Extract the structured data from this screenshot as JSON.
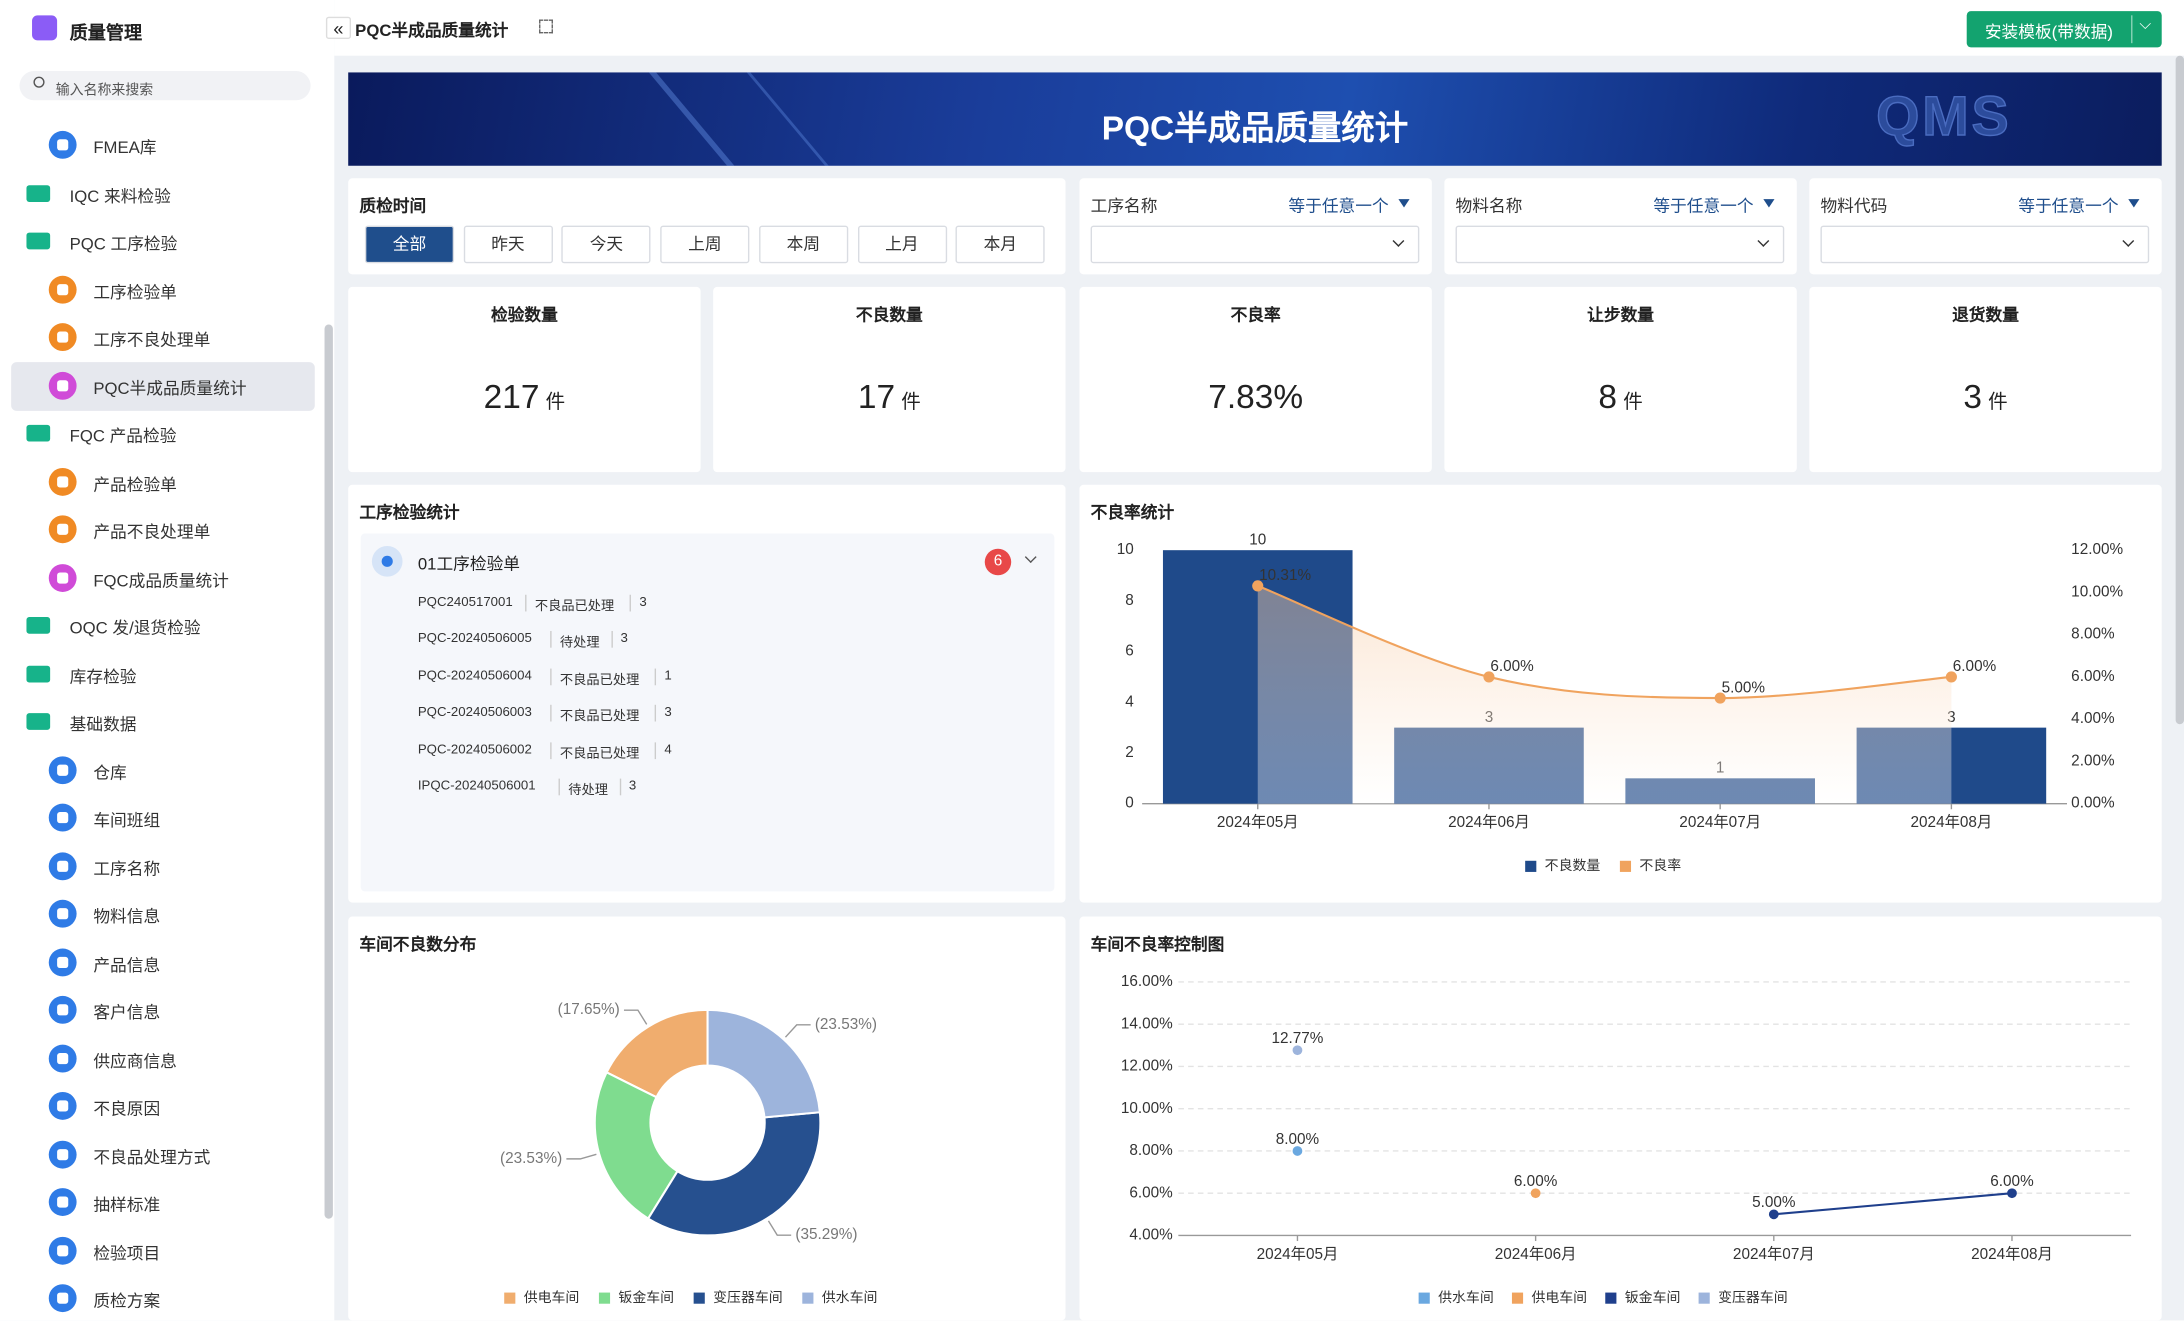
{
  "sidebar": {
    "app_title": "质量管理",
    "search_placeholder": "输入名称来搜索",
    "nav": [
      {
        "items": [
          "FMEA库"
        ]
      },
      {
        "label": "IQC 来料检验"
      },
      {
        "label": "PQC 工序检验",
        "items": [
          "工序检验单",
          "工序不良处理单",
          "PQC半成品质量统计"
        ]
      },
      {
        "label": "FQC 产品检验",
        "items": [
          "产品检验单",
          "产品不良处理单",
          "FQC成品质量统计"
        ]
      },
      {
        "label": "OQC 发/退货检验"
      },
      {
        "label": "库存检验"
      },
      {
        "label": "基础数据",
        "items": [
          "仓库",
          "车间班组",
          "工序名称",
          "物料信息",
          "产品信息",
          "客户信息",
          "供应商信息",
          "不良原因",
          "不良品处理方式",
          "抽样标准",
          "检验项目",
          "质检方案"
        ]
      }
    ]
  },
  "header": {
    "tab_title": "PQC半成品质量统计",
    "install_button": "安装模板(带数据)"
  },
  "banner": {
    "title": "PQC半成品质量统计",
    "logo": "QMS"
  },
  "filters": {
    "time": {
      "label": "质检时间",
      "options": [
        "全部",
        "昨天",
        "今天",
        "上周",
        "本周",
        "上月",
        "本月"
      ]
    },
    "fields": [
      {
        "label": "工序名称",
        "operator": "等于任意一个"
      },
      {
        "label": "物料名称",
        "operator": "等于任意一个"
      },
      {
        "label": "物料代码",
        "operator": "等于任意一个"
      }
    ]
  },
  "kpis": [
    {
      "label": "检验数量",
      "value": 217,
      "unit": "件"
    },
    {
      "label": "不良数量",
      "value": 17,
      "unit": "件"
    },
    {
      "label": "不良率",
      "value": "7.83%"
    },
    {
      "label": "让步数量",
      "value": 8,
      "unit": "件"
    },
    {
      "label": "退货数量",
      "value": 3,
      "unit": "件"
    }
  ],
  "process_stats": {
    "title": "工序检验统计",
    "group": "01工序检验单",
    "badge": 6,
    "rows": [
      [
        "PQC240517001",
        "不良品已处理",
        3
      ],
      [
        "PQC-20240506005",
        "待处理",
        3
      ],
      [
        "PQC-20240506004",
        "不良品已处理",
        1
      ],
      [
        "PQC-20240506003",
        "不良品已处理",
        3
      ],
      [
        "PQC-20240506002",
        "不良品已处理",
        4
      ],
      [
        "IPQC-20240506001",
        "待处理",
        3
      ]
    ]
  },
  "chart_data": [
    {
      "type": "bar",
      "title": "不良率统计",
      "categories": [
        "2024年05月",
        "2024年06月",
        "2024年07月",
        "2024年08月"
      ],
      "series": [
        {
          "name": "不良数量",
          "type": "bar",
          "color": "#1f4a8a",
          "values": [
            10,
            3,
            1,
            3
          ]
        },
        {
          "name": "不良率",
          "type": "line",
          "axis": "y2",
          "color": "#f0a35e",
          "values": [
            10.31,
            6,
            5,
            6
          ],
          "value_labels": [
            "10.31%",
            "6.00%",
            "5.00%",
            "6.00%"
          ]
        }
      ],
      "ylim": [
        0,
        10
      ],
      "yticks": [
        0,
        2,
        4,
        6,
        8,
        10
      ],
      "y2lim": [
        0,
        12
      ],
      "y2ticks": [
        {
          "value": 0,
          "label": "0.00%"
        },
        {
          "value": 2,
          "label": "2.00%"
        },
        {
          "value": 4,
          "label": "4.00%"
        },
        {
          "value": 6,
          "label": "6.00%"
        },
        {
          "value": 8,
          "label": "8.00%"
        },
        {
          "value": 10,
          "label": "10.00%"
        },
        {
          "value": 12,
          "label": "12.00%"
        }
      ],
      "grid": false
    },
    {
      "type": "pie",
      "title": "车间不良数分布",
      "categories": [
        "供电车间",
        "钣金车间",
        "变压器车间",
        "供水车间"
      ],
      "values": [
        17.65,
        23.53,
        35.29,
        23.53
      ],
      "value_labels": [
        "(17.65%)",
        "(23.53%)",
        "(35.29%)",
        "(23.53%)"
      ],
      "colors": [
        "#f0ad6e",
        "#7fdc8f",
        "#26508f",
        "#9db4dc"
      ]
    },
    {
      "type": "line",
      "title": "车间不良率控制图",
      "categories": [
        "2024年05月",
        "2024年06月",
        "2024年07月",
        "2024年08月"
      ],
      "series": [
        {
          "name": "供水车间",
          "color": "#6aa8e0",
          "values": [
            8,
            null,
            null,
            null
          ],
          "value_labels": [
            "8.00%",
            null,
            null,
            null
          ]
        },
        {
          "name": "供电车间",
          "color": "#f0a35e",
          "values": [
            null,
            6,
            null,
            null
          ],
          "value_labels": [
            null,
            "6.00%",
            null,
            null
          ]
        },
        {
          "name": "钣金车间",
          "color": "#1f3f8c",
          "values": [
            null,
            null,
            5,
            6
          ],
          "value_labels": [
            null,
            null,
            "5.00%",
            "6.00%"
          ]
        },
        {
          "name": "变压器车间",
          "color": "#9db4dc",
          "values": [
            12.77,
            null,
            null,
            null
          ],
          "value_labels": [
            "12.77%",
            null,
            null,
            null
          ]
        }
      ],
      "ylim": [
        4,
        16
      ],
      "yticks": [
        {
          "value": 4,
          "label": "4.00%"
        },
        {
          "value": 6,
          "label": "6.00%"
        },
        {
          "value": 8,
          "label": "8.00%"
        },
        {
          "value": 10,
          "label": "10.00%"
        },
        {
          "value": 12,
          "label": "12.00%"
        },
        {
          "value": 14,
          "label": "14.00%"
        },
        {
          "value": 16,
          "label": "16.00%"
        }
      ],
      "grid": true
    }
  ]
}
